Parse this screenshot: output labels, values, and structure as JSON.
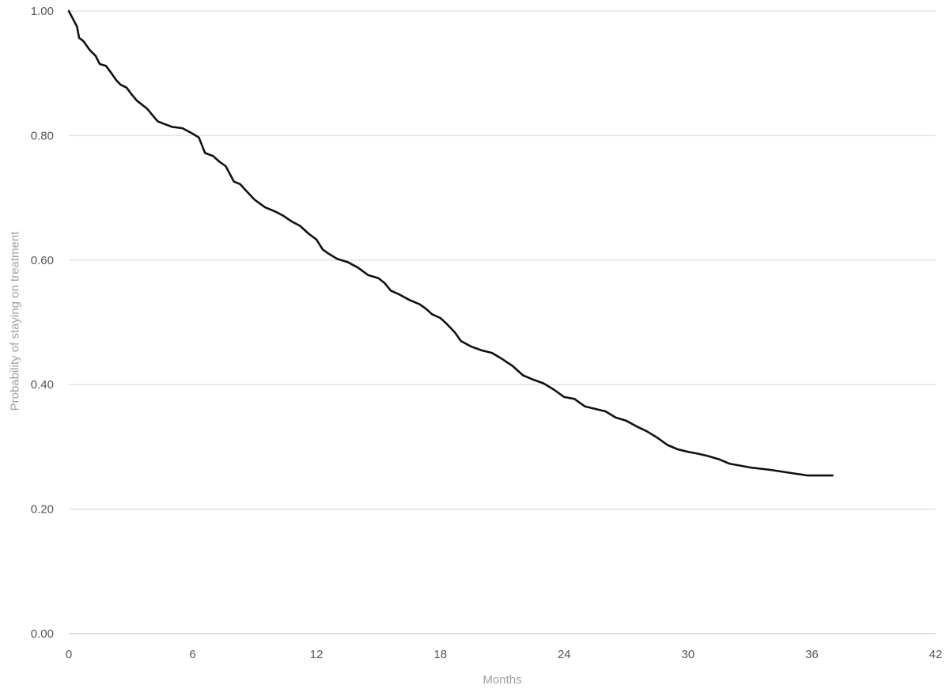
{
  "chart_data": {
    "type": "line",
    "title": "",
    "xlabel": "Months",
    "ylabel": "Probability of staying on treatment",
    "xlim": [
      0,
      42
    ],
    "ylim": [
      0,
      1
    ],
    "x_ticks": [
      "0",
      "6",
      "12",
      "18",
      "24",
      "30",
      "36",
      "42"
    ],
    "y_ticks": [
      "0.00",
      "0.20",
      "0.40",
      "0.60",
      "0.80",
      "1.00"
    ],
    "grid": "horizontal",
    "legend": "none",
    "line_color": "#111111",
    "series": [
      {
        "x": [
          0,
          0.4,
          0.5,
          0.7,
          1.0,
          1.3,
          1.5,
          1.8,
          2.0,
          2.3,
          2.5,
          2.8,
          3.0,
          3.3,
          3.5,
          3.8,
          4.0,
          4.3,
          4.6,
          5.0,
          5.5,
          6.0,
          6.3,
          6.6,
          7.0,
          7.3,
          7.6,
          8.0,
          8.3,
          8.6,
          9.0,
          9.5,
          10.0,
          10.4,
          10.8,
          11.2,
          11.6,
          12.0,
          12.3,
          12.6,
          13.0,
          13.5,
          14.0,
          14.5,
          15.0,
          15.3,
          15.6,
          16.0,
          16.5,
          17.0,
          17.3,
          17.6,
          18.0,
          18.3,
          18.7,
          19.0,
          19.5,
          20.0,
          20.5,
          21.0,
          21.5,
          22.0,
          22.5,
          23.0,
          23.5,
          24.0,
          24.5,
          25.0,
          25.5,
          26.0,
          26.5,
          27.0,
          27.5,
          28.0,
          28.5,
          29.0,
          29.5,
          30.0,
          30.5,
          31.0,
          31.5,
          32.0,
          33.0,
          34.0,
          35.0,
          35.8,
          36.5,
          37.0
        ],
        "y": [
          1.0,
          0.975,
          0.957,
          0.952,
          0.938,
          0.928,
          0.915,
          0.912,
          0.903,
          0.889,
          0.882,
          0.877,
          0.868,
          0.856,
          0.851,
          0.843,
          0.835,
          0.823,
          0.819,
          0.814,
          0.812,
          0.803,
          0.797,
          0.772,
          0.767,
          0.758,
          0.751,
          0.726,
          0.722,
          0.711,
          0.697,
          0.685,
          0.678,
          0.671,
          0.662,
          0.655,
          0.643,
          0.633,
          0.617,
          0.61,
          0.602,
          0.597,
          0.588,
          0.576,
          0.571,
          0.563,
          0.551,
          0.545,
          0.536,
          0.529,
          0.522,
          0.513,
          0.507,
          0.498,
          0.484,
          0.47,
          0.461,
          0.455,
          0.451,
          0.441,
          0.43,
          0.415,
          0.408,
          0.402,
          0.392,
          0.38,
          0.377,
          0.365,
          0.361,
          0.357,
          0.347,
          0.342,
          0.333,
          0.325,
          0.315,
          0.303,
          0.296,
          0.292,
          0.289,
          0.285,
          0.28,
          0.273,
          0.267,
          0.263,
          0.258,
          0.254,
          0.254,
          0.254
        ]
      }
    ]
  }
}
